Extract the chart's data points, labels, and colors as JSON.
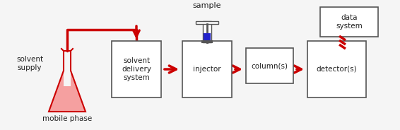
{
  "bg_color": "#f5f5f5",
  "box_color": "#ffffff",
  "box_edge": "#555555",
  "arrow_color": "#cc0000",
  "flask_fill": "#f5a0a0",
  "flask_outline": "#cc0000",
  "syringe_body": "#ffffff",
  "syringe_fill": "#2222cc",
  "syringe_outline": "#555555",
  "data_box_color": "#ffffff",
  "data_box_edge": "#555555",
  "dashed_line_color": "#cc0000",
  "text_color": "#222222",
  "labels": {
    "solvent_supply": "solvent\nsupply",
    "mobile_phase": "mobile phase",
    "solvent_delivery": "solvent\ndelivery\nsystem",
    "injector": "injector",
    "columns": "column(s)",
    "detector": "detector(s)",
    "sample": "sample",
    "data_system": "data\nsystem"
  },
  "figsize": [
    5.66,
    1.84
  ],
  "dpi": 100
}
